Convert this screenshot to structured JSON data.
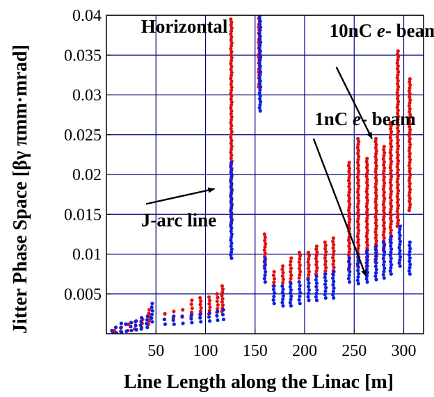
{
  "chart_data": {
    "type": "scatter",
    "title": "",
    "xlabel": "Line Length along the Linac [m]",
    "ylabel": "Jitter Phase Space [βγ πmm·mrad]",
    "xlim": [
      0,
      320
    ],
    "ylim": [
      0,
      0.04
    ],
    "x_ticks": [
      50,
      100,
      150,
      200,
      250,
      300
    ],
    "x_tick_labels": [
      "50",
      "100",
      "150",
      "200",
      "250",
      "300"
    ],
    "y_ticks": [
      0.005,
      0.01,
      0.015,
      0.02,
      0.025,
      0.03,
      0.035,
      0.04
    ],
    "y_tick_labels": [
      "0.005",
      "0.01",
      "0.015",
      "0.02",
      "0.025",
      "0.03",
      "0.035",
      "0.04"
    ],
    "grid": true,
    "annotations": [
      {
        "text": "Horizontal",
        "x": 35,
        "y": 0.0378
      },
      {
        "text": "10nC e- beam",
        "x": 225,
        "y": 0.0373
      },
      {
        "text": "1nC e- beam",
        "x": 210,
        "y": 0.0262
      },
      {
        "text": "J-arc line",
        "x": 35,
        "y": 0.0135
      }
    ],
    "arrows": [
      {
        "from": [
          40,
          0.0163
        ],
        "to": [
          109,
          0.0182
        ]
      },
      {
        "from": [
          232,
          0.0335
        ],
        "to": [
          268,
          0.0245
        ]
      },
      {
        "from": [
          209,
          0.0245
        ],
        "to": [
          262,
          0.0072
        ]
      }
    ],
    "series": [
      {
        "color": "#e01010",
        "columns": [
          {
            "x": 8,
            "ymin": 0.0001,
            "ymax": 0.0004
          },
          {
            "x": 15,
            "ymin": 0.0003,
            "ymax": 0.0008
          },
          {
            "x": 22,
            "ymin": 0.0004,
            "ymax": 0.0012
          },
          {
            "x": 29,
            "ymin": 0.0006,
            "ymax": 0.0015
          },
          {
            "x": 36,
            "ymin": 0.0008,
            "ymax": 0.0018
          },
          {
            "x": 43,
            "ymin": 0.0012,
            "ymax": 0.003
          },
          {
            "x": 59,
            "ymin": 0.0018,
            "ymax": 0.0025
          },
          {
            "x": 68,
            "ymin": 0.002,
            "ymax": 0.0028
          },
          {
            "x": 77,
            "ymin": 0.0021,
            "ymax": 0.003
          },
          {
            "x": 86,
            "ymin": 0.0022,
            "ymax": 0.0042
          },
          {
            "x": 95,
            "ymin": 0.0024,
            "ymax": 0.0045
          },
          {
            "x": 104,
            "ymin": 0.0025,
            "ymax": 0.0046
          },
          {
            "x": 112,
            "ymin": 0.0027,
            "ymax": 0.005
          },
          {
            "x": 117,
            "ymin": 0.0028,
            "ymax": 0.006
          },
          {
            "x": 126,
            "ymin": 0.0135,
            "ymax": 0.0395
          },
          {
            "x": 154,
            "ymin": 0.031,
            "ymax": 0.04
          },
          {
            "x": 160,
            "ymin": 0.0085,
            "ymax": 0.0125
          },
          {
            "x": 169,
            "ymin": 0.006,
            "ymax": 0.0078
          },
          {
            "x": 178,
            "ymin": 0.006,
            "ymax": 0.0085
          },
          {
            "x": 186,
            "ymin": 0.0065,
            "ymax": 0.0095
          },
          {
            "x": 195,
            "ymin": 0.007,
            "ymax": 0.0102
          },
          {
            "x": 204,
            "ymin": 0.007,
            "ymax": 0.0102
          },
          {
            "x": 212,
            "ymin": 0.0075,
            "ymax": 0.011
          },
          {
            "x": 221,
            "ymin": 0.0075,
            "ymax": 0.0115
          },
          {
            "x": 229,
            "ymin": 0.0075,
            "ymax": 0.012
          },
          {
            "x": 245,
            "ymin": 0.008,
            "ymax": 0.0215
          },
          {
            "x": 254,
            "ymin": 0.0085,
            "ymax": 0.0245
          },
          {
            "x": 263,
            "ymin": 0.0085,
            "ymax": 0.022
          },
          {
            "x": 272,
            "ymin": 0.009,
            "ymax": 0.0245
          },
          {
            "x": 280,
            "ymin": 0.0105,
            "ymax": 0.0235
          },
          {
            "x": 287,
            "ymin": 0.0115,
            "ymax": 0.0265
          },
          {
            "x": 294,
            "ymin": 0.0135,
            "ymax": 0.0355
          },
          {
            "x": 306,
            "ymin": 0.0155,
            "ymax": 0.032
          }
        ]
      },
      {
        "color": "#1020e0",
        "columns": [
          {
            "x": 6,
            "ymin": 0.0,
            "ymax": 0.0004
          },
          {
            "x": 10,
            "ymin": 0.0001,
            "ymax": 0.0008
          },
          {
            "x": 15,
            "ymin": 0.0002,
            "ymax": 0.0013
          },
          {
            "x": 20,
            "ymin": 0.0003,
            "ymax": 0.0012
          },
          {
            "x": 25,
            "ymin": 0.0004,
            "ymax": 0.0014
          },
          {
            "x": 30,
            "ymin": 0.0005,
            "ymax": 0.0016
          },
          {
            "x": 35,
            "ymin": 0.0006,
            "ymax": 0.002
          },
          {
            "x": 41,
            "ymin": 0.0008,
            "ymax": 0.0022
          },
          {
            "x": 46,
            "ymin": 0.0015,
            "ymax": 0.0038
          },
          {
            "x": 59,
            "ymin": 0.0012,
            "ymax": 0.0018
          },
          {
            "x": 68,
            "ymin": 0.0012,
            "ymax": 0.0022
          },
          {
            "x": 77,
            "ymin": 0.0013,
            "ymax": 0.0022
          },
          {
            "x": 86,
            "ymin": 0.0014,
            "ymax": 0.0024
          },
          {
            "x": 95,
            "ymin": 0.0015,
            "ymax": 0.0025
          },
          {
            "x": 104,
            "ymin": 0.0016,
            "ymax": 0.0026
          },
          {
            "x": 112,
            "ymin": 0.0017,
            "ymax": 0.0028
          },
          {
            "x": 118,
            "ymin": 0.0018,
            "ymax": 0.003
          },
          {
            "x": 126,
            "ymin": 0.0095,
            "ymax": 0.0215
          },
          {
            "x": 155,
            "ymin": 0.028,
            "ymax": 0.04
          },
          {
            "x": 160,
            "ymin": 0.0065,
            "ymax": 0.0095
          },
          {
            "x": 169,
            "ymin": 0.0038,
            "ymax": 0.006
          },
          {
            "x": 178,
            "ymin": 0.0035,
            "ymax": 0.006
          },
          {
            "x": 186,
            "ymin": 0.0035,
            "ymax": 0.0063
          },
          {
            "x": 195,
            "ymin": 0.0038,
            "ymax": 0.0065
          },
          {
            "x": 204,
            "ymin": 0.0042,
            "ymax": 0.0068
          },
          {
            "x": 212,
            "ymin": 0.0042,
            "ymax": 0.0072
          },
          {
            "x": 221,
            "ymin": 0.0045,
            "ymax": 0.0075
          },
          {
            "x": 229,
            "ymin": 0.0045,
            "ymax": 0.0078
          },
          {
            "x": 245,
            "ymin": 0.0065,
            "ymax": 0.0095
          },
          {
            "x": 254,
            "ymin": 0.0063,
            "ymax": 0.01
          },
          {
            "x": 263,
            "ymin": 0.0065,
            "ymax": 0.0105
          },
          {
            "x": 272,
            "ymin": 0.0068,
            "ymax": 0.011
          },
          {
            "x": 280,
            "ymin": 0.007,
            "ymax": 0.0115
          },
          {
            "x": 287,
            "ymin": 0.0075,
            "ymax": 0.0122
          },
          {
            "x": 296,
            "ymin": 0.0085,
            "ymax": 0.0135
          },
          {
            "x": 306,
            "ymin": 0.0075,
            "ymax": 0.0115
          }
        ]
      }
    ]
  }
}
